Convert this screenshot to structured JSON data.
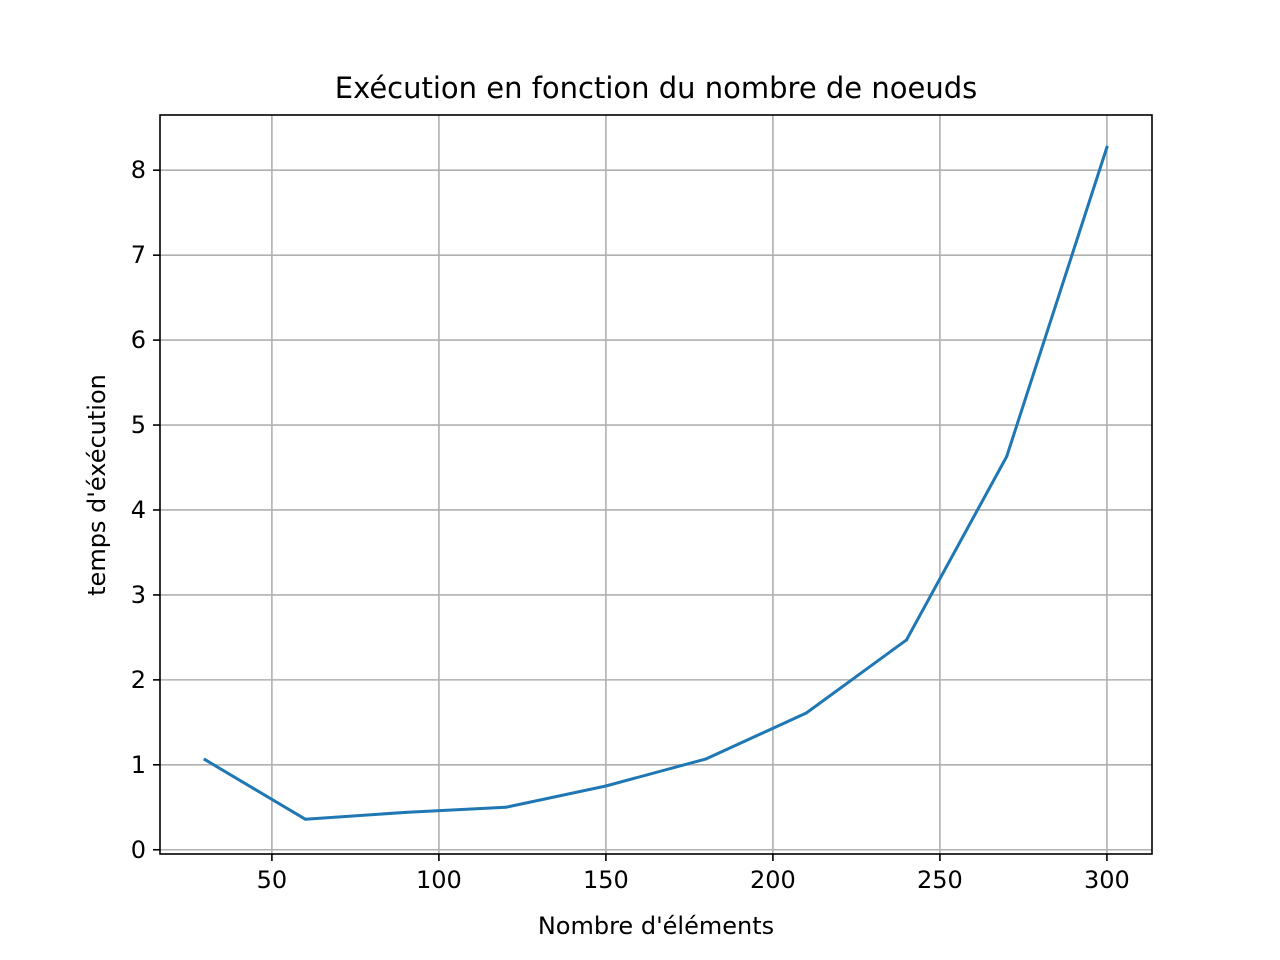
{
  "chart_data": {
    "type": "line",
    "title": "Exécution en fonction du nombre de noeuds",
    "xlabel": "Nombre d'éléments",
    "ylabel": "temps d'éxécution",
    "xlim": [
      16.5,
      313.5
    ],
    "ylim": [
      -0.05,
      8.65
    ],
    "xticks": [
      50,
      100,
      150,
      200,
      250,
      300
    ],
    "yticks": [
      0,
      1,
      2,
      3,
      4,
      5,
      6,
      7,
      8
    ],
    "grid": true,
    "series": [
      {
        "color": "#1f77b4",
        "x": [
          30,
          60,
          90,
          120,
          150,
          180,
          210,
          240,
          270,
          300
        ],
        "y": [
          1.06,
          0.36,
          0.44,
          0.5,
          0.75,
          1.07,
          1.61,
          2.47,
          4.63,
          8.27
        ]
      }
    ]
  }
}
